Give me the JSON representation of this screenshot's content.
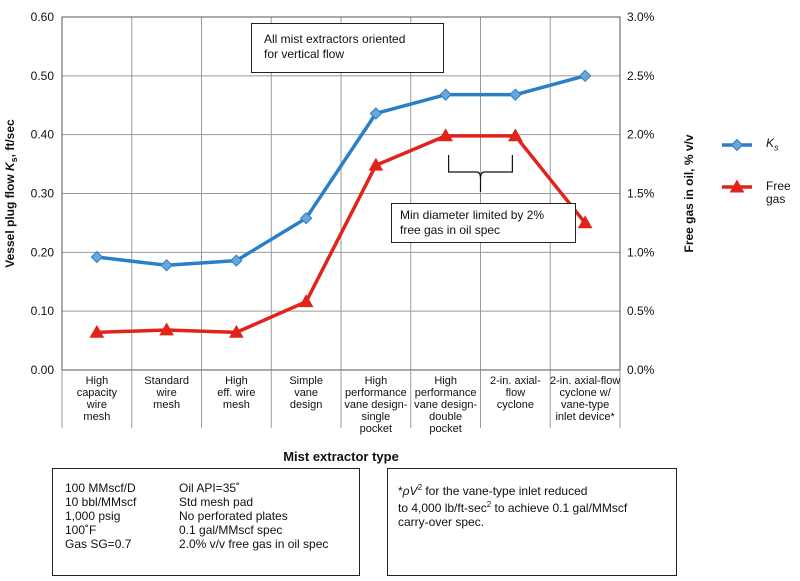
{
  "chart_data": {
    "type": "line",
    "title": "",
    "xlabel": "Mist extractor type",
    "ylabel_left_prefix": "Vessel plug flow ",
    "ylabel_left_symbol": "K",
    "ylabel_left_sub": "s",
    "ylabel_left_suffix": ", ft/sec",
    "ylabel_right": "Free gas in oil, % v/v",
    "ylim_left": [
      0,
      0.6
    ],
    "ylim_right": [
      0,
      3.0
    ],
    "yticks_left": [
      "0.00",
      "0.10",
      "0.20",
      "0.30",
      "0.40",
      "0.50",
      "0.60"
    ],
    "yticks_right": [
      "0.0%",
      "0.5%",
      "1.0%",
      "1.5%",
      "2.0%",
      "2.5%",
      "3.0%"
    ],
    "categories": [
      [
        "High",
        "capacity",
        "wire",
        "mesh"
      ],
      [
        "Standard",
        "wire",
        "mesh"
      ],
      [
        "High",
        "eff. wire",
        "mesh"
      ],
      [
        "Simple",
        "vane",
        "design"
      ],
      [
        "High",
        "performance",
        "vane design-",
        "single",
        "pocket"
      ],
      [
        "High",
        "performance",
        "vane design-",
        "double",
        "pocket"
      ],
      [
        "2-in. axial-",
        "flow",
        "cyclone"
      ],
      [
        "2-in. axial-flow",
        "cyclone w/",
        "vane-type",
        "inlet device*"
      ]
    ],
    "series": [
      {
        "name": "Ks",
        "axis": "left",
        "marker": "diamond",
        "color": "#2a7fc6",
        "values": [
          0.192,
          0.178,
          0.186,
          0.258,
          0.436,
          0.468,
          0.468,
          0.5
        ]
      },
      {
        "name": "Free gas",
        "axis": "right",
        "marker": "triangle",
        "color": "#e0241b",
        "values": [
          0.32,
          0.34,
          0.32,
          0.58,
          1.74,
          1.99,
          1.99,
          1.25
        ]
      }
    ],
    "legend": {
      "ks_symbol": "K",
      "ks_sub": "s",
      "free_line1": "Free",
      "free_line2": "gas"
    },
    "annotations": {
      "top_box": [
        "All mist extractors oriented",
        "for vertical flow"
      ],
      "mid_box": [
        "Min diameter limited by 2%",
        "free gas in oil spec"
      ]
    },
    "grid": true,
    "legend_position": "right"
  },
  "conditions": {
    "left": [
      "100 MMscf/D",
      "10 bbl/MMscf",
      "1,000 psig",
      "100˚F",
      "Gas SG=0.7"
    ],
    "right": [
      "Oil API=35˚",
      "Std mesh pad",
      "No perforated plates",
      "0.1 gal/MMscf spec",
      "2.0% v/v free gas in oil spec"
    ]
  },
  "footnote": {
    "star": "*",
    "rho": "ρ",
    "v": "V",
    "sup2": "2",
    "line1_rest": " for the vane-type inlet reduced",
    "line2_pre": "to 4,000 lb/ft-sec",
    "line2_post": " to achieve 0.1 gal/MMscf",
    "line3": "carry-over spec."
  }
}
